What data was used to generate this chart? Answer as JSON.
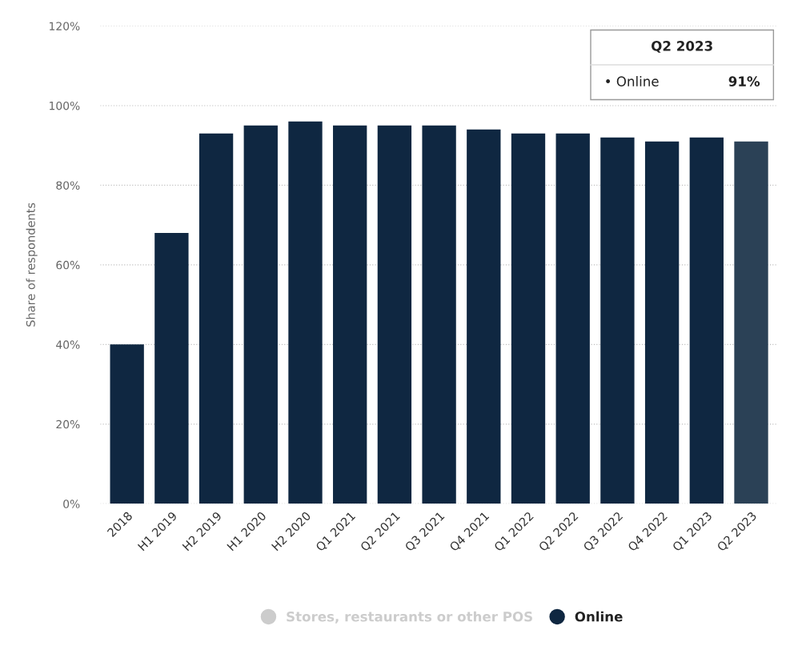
{
  "chart_data": {
    "type": "bar",
    "ylabel": "Share of respondents",
    "categories": [
      "2018",
      "H1 2019",
      "H2 2019",
      "H1 2020",
      "H2 2020",
      "Q1 2021",
      "Q2 2021",
      "Q3 2021",
      "Q4 2021",
      "Q1 2022",
      "Q2 2022",
      "Q3 2022",
      "Q4 2022",
      "Q1 2023",
      "Q2 2023"
    ],
    "series": [
      {
        "name": "Stores, restaurants or other POS",
        "color": "#cccccc",
        "values": [
          null,
          null,
          null,
          null,
          null,
          null,
          null,
          null,
          null,
          null,
          null,
          null,
          null,
          null,
          null
        ]
      },
      {
        "name": "Online",
        "color": "#0f2741",
        "colors": [
          "#0f2741",
          "#0f2741",
          "#0f2741",
          "#0f2741",
          "#0f2741",
          "#0f2741",
          "#0f2741",
          "#0f2741",
          "#0f2741",
          "#0f2741",
          "#0f2741",
          "#0f2741",
          "#0f2741",
          "#0f2741",
          "#2b4156"
        ],
        "values": [
          40,
          68,
          93,
          95,
          96,
          95,
          95,
          95,
          94,
          93,
          93,
          92,
          91,
          92,
          91
        ]
      }
    ],
    "ylim": [
      0,
      120
    ],
    "yticks": [
      {
        "value": 0,
        "label": "0%"
      },
      {
        "value": 20,
        "label": "20%"
      },
      {
        "value": 40,
        "label": "40%"
      },
      {
        "value": 60,
        "label": "60%"
      },
      {
        "value": 80,
        "label": "80%"
      },
      {
        "value": 100,
        "label": "100%"
      },
      {
        "value": 120,
        "label": "120%"
      }
    ],
    "grid": "y",
    "legend": "bottom",
    "annotations": [
      "Q2 2023",
      "• Online",
      "91%"
    ]
  }
}
